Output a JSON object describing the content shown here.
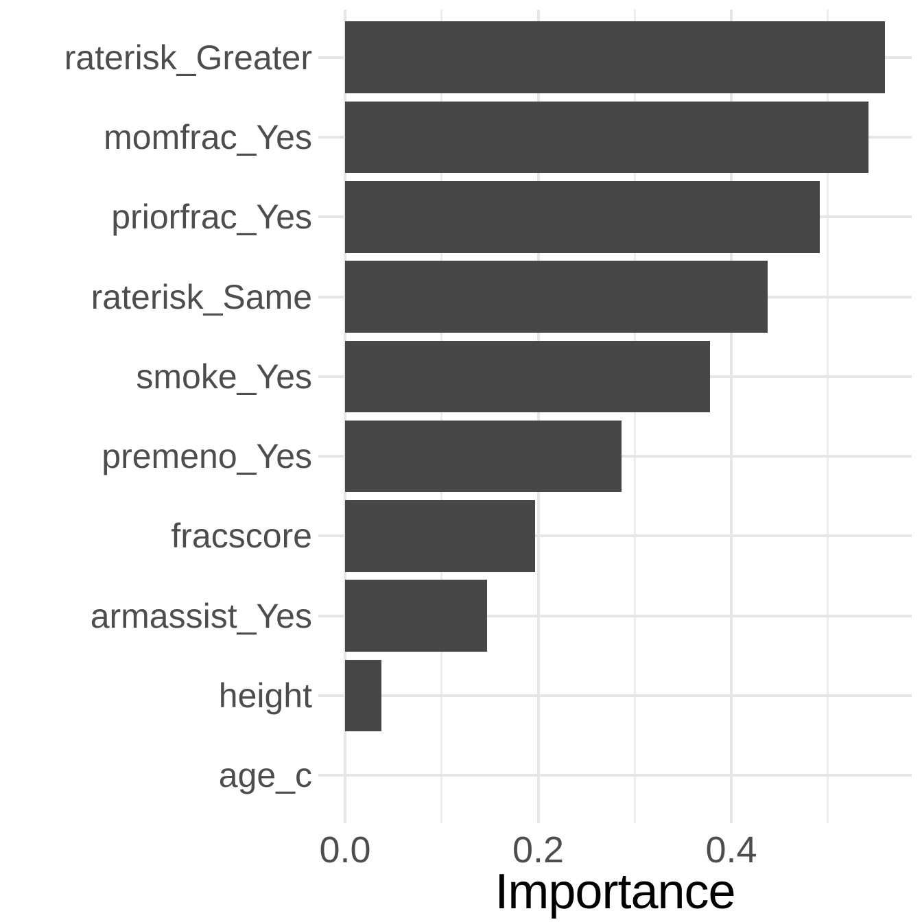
{
  "figure": {
    "background": "#FFFFFF"
  },
  "chart_data": {
    "type": "bar",
    "orientation": "horizontal",
    "title": "",
    "xlabel": "Importance",
    "ylabel": "",
    "categories": [
      "raterisk_Greater",
      "momfrac_Yes",
      "priorfrac_Yes",
      "raterisk_Same",
      "smoke_Yes",
      "premeno_Yes",
      "fracscore",
      "armassist_Yes",
      "height",
      "age_c"
    ],
    "values": [
      0.559,
      0.542,
      0.492,
      0.438,
      0.378,
      0.286,
      0.197,
      0.147,
      0.038,
      0.0
    ],
    "xlim": [
      -0.028,
      0.587
    ],
    "x_major_ticks": [
      {
        "value": 0.0,
        "label": "0.0"
      },
      {
        "value": 0.2,
        "label": "0.2"
      },
      {
        "value": 0.4,
        "label": "0.4"
      }
    ],
    "x_minor_ticks": [
      0.1,
      0.3,
      0.5
    ],
    "grid": {
      "vertical": "major+minor",
      "horizontal": "one line per category center"
    },
    "legend": "none",
    "colors": {
      "bar": "#474747",
      "grid_major": "#E6E6E6",
      "grid_minor": "#EDEDED",
      "axis_text": "#4D4D4D",
      "axis_title": "#000000",
      "background": "#FFFFFF"
    }
  }
}
